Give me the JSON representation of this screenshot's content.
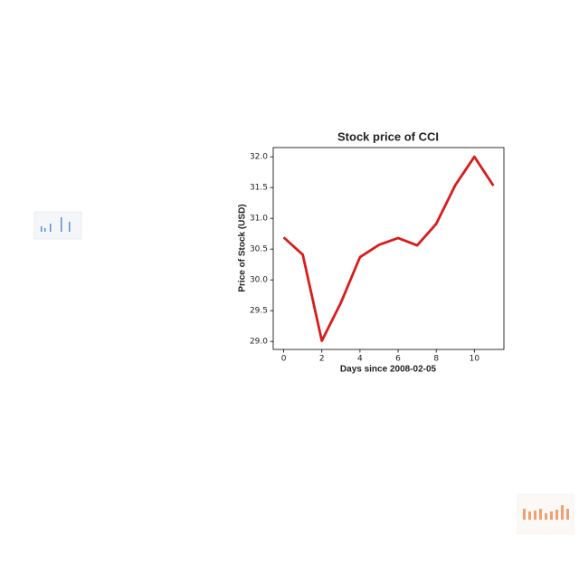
{
  "chart_data": {
    "type": "line",
    "title": "Stock price of CCI",
    "x_label": "Days since 2008-02-05",
    "y_label": "Price of Stock (USD)",
    "x": [
      0,
      1,
      2,
      3,
      4,
      5,
      6,
      7,
      8,
      9,
      10,
      11
    ],
    "series": [
      {
        "name": "CCI",
        "color": "#d81c1c",
        "values": [
          30.69,
          30.41,
          29.01,
          29.63,
          30.37,
          30.57,
          30.68,
          30.56,
          30.91,
          31.54,
          32.0,
          31.53
        ]
      }
    ],
    "xlim": [
      -0.55,
      11.55
    ],
    "xticks": [
      0,
      2,
      4,
      6,
      8,
      10
    ],
    "ylim": [
      28.87,
      32.15
    ],
    "yticks": [
      {
        "value": 29,
        "label": "29.0"
      },
      29.5,
      {
        "value": 30,
        "label": "30.0"
      },
      30.5,
      {
        "value": 31,
        "label": "31.0"
      },
      31.5,
      {
        "value": 32,
        "label": "32.0"
      }
    ],
    "grid": false
  }
}
